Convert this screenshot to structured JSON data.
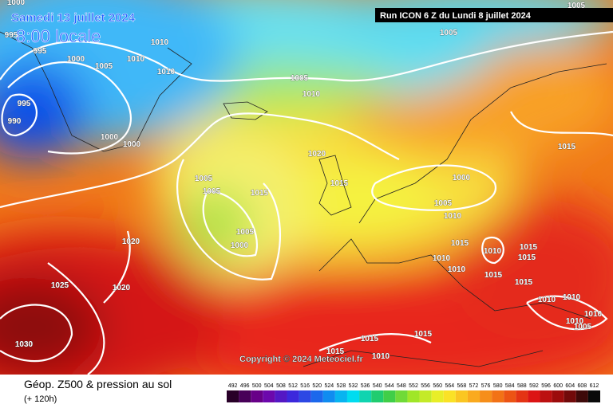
{
  "header": {
    "date": "Samedi 13 juillet 2024",
    "time": "8:00 locale",
    "run": "Run ICON 6 Z du Lundi 8 juillet 2024"
  },
  "copyright": "Copyright © 2024 Meteociel.fr",
  "legend": {
    "title": "Géop. Z500 & pression au sol",
    "subtitle": "(+ 120h)",
    "scale": [
      "492",
      "496",
      "500",
      "504",
      "508",
      "512",
      "516",
      "520",
      "524",
      "528",
      "532",
      "536",
      "540",
      "544",
      "548",
      "552",
      "556",
      "560",
      "564",
      "568",
      "572",
      "576",
      "580",
      "584",
      "588",
      "592",
      "596",
      "600",
      "604",
      "608",
      "612"
    ]
  },
  "isobar_labels": [
    "1005",
    "995",
    "1005",
    "995",
    "1000",
    "1010",
    "1010",
    "1005",
    "1010",
    "1005",
    "1010",
    "995",
    "990",
    "1000",
    "1000",
    "1020",
    "1015",
    "1005",
    "1005",
    "1015",
    "1015",
    "1000",
    "1005",
    "1010",
    "1005",
    "1000",
    "1020",
    "1015",
    "1010",
    "1015",
    "1015",
    "1010",
    "1010",
    "1015",
    "1015",
    "1020",
    "1025",
    "1010",
    "1010",
    "1010",
    "1010",
    "1005",
    "1030",
    "1015",
    "1015",
    "1015",
    "1010",
    "1000"
  ]
}
